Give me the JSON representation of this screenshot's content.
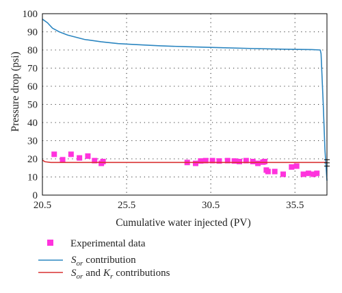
{
  "chart_data": {
    "type": "line",
    "title": "",
    "xlabel": "Cumulative water injected (PV)",
    "ylabel": "Pressure drop (psi)",
    "xlim": [
      20.5,
      37.4
    ],
    "ylim": [
      0,
      100
    ],
    "x_ticks": [
      "20.5",
      "25.5",
      "30.5",
      "35.5"
    ],
    "x_tick_values": [
      20.5,
      25.5,
      30.5,
      35.5
    ],
    "y_ticks": [
      "0",
      "10",
      "20",
      "30",
      "40",
      "50",
      "60",
      "70",
      "80",
      "90",
      "100"
    ],
    "y_tick_values": [
      0,
      10,
      20,
      30,
      40,
      50,
      60,
      70,
      80,
      90,
      100
    ],
    "grid": "dotted",
    "legend_position": "bottom",
    "series": [
      {
        "name": "Experimental data",
        "kind": "scatter",
        "color": "#ff33dd",
        "points": [
          [
            21.2,
            22.5
          ],
          [
            21.7,
            19.5
          ],
          [
            22.2,
            22.5
          ],
          [
            22.7,
            20.5
          ],
          [
            23.2,
            21.5
          ],
          [
            23.6,
            19.0
          ],
          [
            24.0,
            17.5
          ],
          [
            24.1,
            18.5
          ],
          [
            29.1,
            18.0
          ],
          [
            29.6,
            17.5
          ],
          [
            29.9,
            18.8
          ],
          [
            30.2,
            19.0
          ],
          [
            30.6,
            19.0
          ],
          [
            31.0,
            18.8
          ],
          [
            31.5,
            19.0
          ],
          [
            31.9,
            18.8
          ],
          [
            32.2,
            18.5
          ],
          [
            32.6,
            19.0
          ],
          [
            33.0,
            18.5
          ],
          [
            33.3,
            17.5
          ],
          [
            33.6,
            18.2
          ],
          [
            33.7,
            18.5
          ],
          [
            33.8,
            13.8
          ],
          [
            33.9,
            13.0
          ],
          [
            34.3,
            13.0
          ],
          [
            34.8,
            11.5
          ],
          [
            35.3,
            15.5
          ],
          [
            35.6,
            16.0
          ],
          [
            36.0,
            11.5
          ],
          [
            36.3,
            12.0
          ],
          [
            36.6,
            11.5
          ],
          [
            36.8,
            12.0
          ]
        ]
      },
      {
        "name": "S_or contribution",
        "kind": "line",
        "color": "#2a85c0",
        "points": [
          [
            20.5,
            97
          ],
          [
            20.8,
            95
          ],
          [
            21.1,
            92
          ],
          [
            21.5,
            90
          ],
          [
            22.0,
            88.2
          ],
          [
            23.0,
            85.8
          ],
          [
            24.0,
            84.5
          ],
          [
            25.0,
            83.5
          ],
          [
            26.0,
            83.0
          ],
          [
            27.5,
            82.3
          ],
          [
            29.0,
            81.8
          ],
          [
            31.0,
            81.3
          ],
          [
            33.0,
            80.8
          ],
          [
            35.0,
            80.4
          ],
          [
            36.5,
            80.2
          ],
          [
            37.0,
            80.0
          ],
          [
            37.05,
            78.0
          ],
          [
            37.18,
            50.0
          ],
          [
            37.28,
            25.0
          ],
          [
            37.4,
            8.0
          ]
        ]
      },
      {
        "name": "S_or and K_r contributions",
        "kind": "line",
        "color": "#d93030",
        "points": [
          [
            20.5,
            19.3
          ],
          [
            20.65,
            18.4
          ],
          [
            21.0,
            18.0
          ],
          [
            37.4,
            18.0
          ]
        ]
      }
    ],
    "error_bar": {
      "x": 37.4,
      "y": 17.8,
      "low": 16.0,
      "high": 19.5
    }
  },
  "legend": {
    "experimental": "Experimental data",
    "sor_main": "S",
    "sor_sub": "or",
    "sor_rest": "contribution",
    "both_main1": "S",
    "both_sub1": "or",
    "both_mid": "and",
    "both_main2": "K",
    "both_sub2": "r",
    "both_rest": "contributions"
  }
}
